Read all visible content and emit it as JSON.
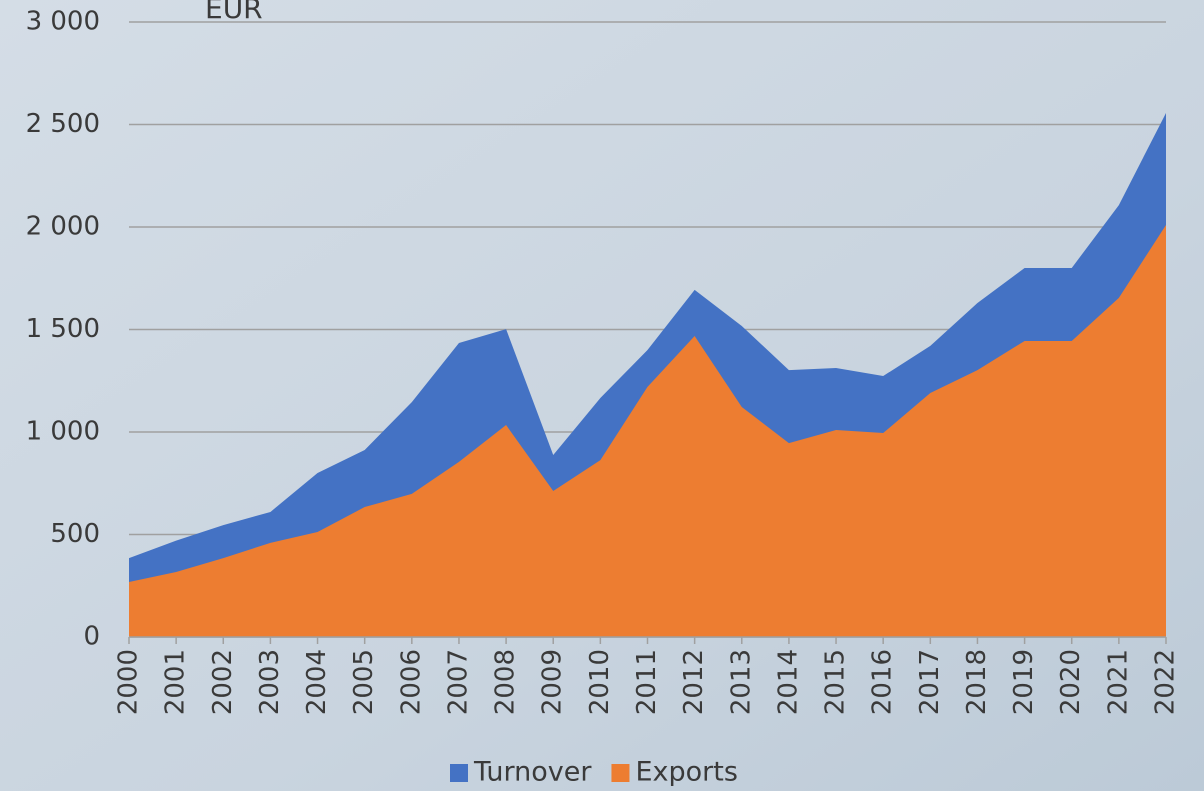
{
  "chart_data": {
    "type": "area",
    "title": "EUR",
    "categories": [
      "2000",
      "2001",
      "2002",
      "2003",
      "2004",
      "2005",
      "2006",
      "2007",
      "2008",
      "2009",
      "2010",
      "2011",
      "2012",
      "2013",
      "2014",
      "2015",
      "2016",
      "2017",
      "2018",
      "2019",
      "2020",
      "2021",
      "2022"
    ],
    "series": [
      {
        "name": "Turnover",
        "color": "#4472c4",
        "values": [
          385,
          470,
          546,
          610,
          800,
          912,
          1146,
          1434,
          1502,
          888,
          1166,
          1400,
          1693,
          1517,
          1302,
          1312,
          1273,
          1420,
          1629,
          1800,
          1800,
          2107,
          2556
        ]
      },
      {
        "name": "Exports",
        "color": "#ed7d31",
        "values": [
          268,
          317,
          385,
          459,
          512,
          634,
          698,
          854,
          1034,
          712,
          863,
          1220,
          1468,
          1122,
          946,
          1010,
          995,
          1190,
          1302,
          1444,
          1444,
          1654,
          2010
        ]
      }
    ],
    "ylim": [
      0,
      3000
    ],
    "yticks": [
      0,
      500,
      {
        "value": 1000,
        "label": "1 000"
      },
      {
        "value": 1500,
        "label": "1 500"
      },
      {
        "value": 2000,
        "label": "2 000"
      },
      {
        "value": 2500,
        "label": "2 500"
      },
      {
        "value": 3000,
        "label": "3 000"
      }
    ],
    "grid": true,
    "legend": "bottom"
  }
}
